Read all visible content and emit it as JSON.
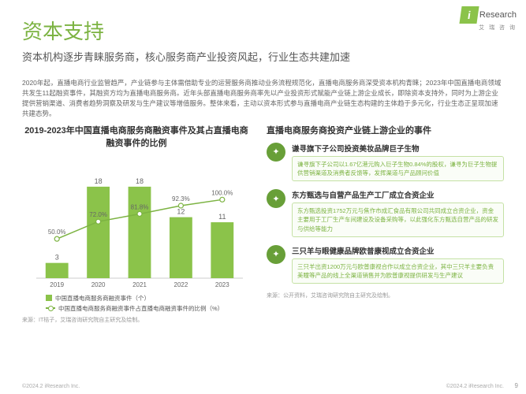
{
  "logo": {
    "symbol": "i",
    "brand": "Research",
    "tagline": "艾 瑞 咨 询"
  },
  "header": {
    "title": "资本支持",
    "subtitle": "资本机构逐步青睐服务商，核心服务商产业投资风起，行业生态共建加速"
  },
  "intro": "2020年起，直播电商行业监管趋严，产业链参与主体需借助专业的运营服务商推动业务流程规范化，直播电商服务商深受资本机构青睐；2023年中国直播电商领域共发生11起融资事件，其融资方均为直播电商服务商。近年头部直播电商服务商率先以产业投资形式赋能产业链上游企业成长，即除资本支持外，同时为上游企业提供营销渠道、消费者趋势洞察及研发与生产建议等增值服务。整体来看，主动以资本形式参与直播电商产业链生态构建的主体趋于多元化，行业生态正呈现加速共建态势。",
  "chart": {
    "type": "bar+line",
    "title": "2019-2023年中国直播电商服务商融资事件及其占直播电商融资事件的比例",
    "categories": [
      "2019",
      "2020",
      "2021",
      "2022",
      "2023"
    ],
    "bar_values": [
      3,
      18,
      18,
      12,
      11
    ],
    "line_values": [
      50.0,
      72.0,
      81.8,
      92.3,
      100.0
    ],
    "line_labels": [
      "50.0%",
      "72.0%",
      "81.8%",
      "92.3%",
      "100.0%"
    ],
    "bar_color": "#8bc34a",
    "bar_label_color": "#666666",
    "line_color": "#7cb342",
    "marker_fill": "#ffffff",
    "marker_stroke": "#7cb342",
    "axis_color": "#cccccc",
    "text_color": "#666666",
    "y_bar_max": 20,
    "y_line_max": 110,
    "legend_bar": "中国直播电商服务商融资事件（个）",
    "legend_line": "中国直播电商服务商融资事件占直播电商融资事件的比例（%）",
    "source": "来源：IT桔子，艾瑞咨询研究院自主研究及绘制。"
  },
  "right": {
    "title": "直播电商服务商投资产业链上游企业的事件",
    "events": [
      {
        "icon": "✦",
        "title": "谦寻旗下子公司投资美妆品牌巨子生物",
        "desc": "谦寻旗下子公司以1.67亿港元购入巨子生物0.84%的股权，谦寻为巨子生物提供营销渠道及消费者反馈等，发挥渠道与产品顾问价值"
      },
      {
        "icon": "✦",
        "title": "东方甄选与自营产品生产工厂成立合资企业",
        "desc": "东方甄选投资1752万元与焦作市成汇食品有限公司共同成立合资企业，资金主要用于工厂生产车间建设及设备采购等，以此强化东方甄选自营产品的研发与供给等能力"
      },
      {
        "icon": "✦",
        "title": "三只羊与眼健康品牌欧普康视成立合资企业",
        "desc": "三只羊出资1200万元与欧普康视合作以成立合资企业，其中三只羊主要负责美瞳等产品的线上全渠道销售并为欧普康视提供研发与生产建议"
      }
    ],
    "source": "来源：公开资料，艾瑞咨询研究院自主研究及绘制。"
  },
  "footer": {
    "copy_left": "©2024.2 iResearch Inc.",
    "copy_right": "©2024.2 iResearch Inc.",
    "page": "9"
  }
}
